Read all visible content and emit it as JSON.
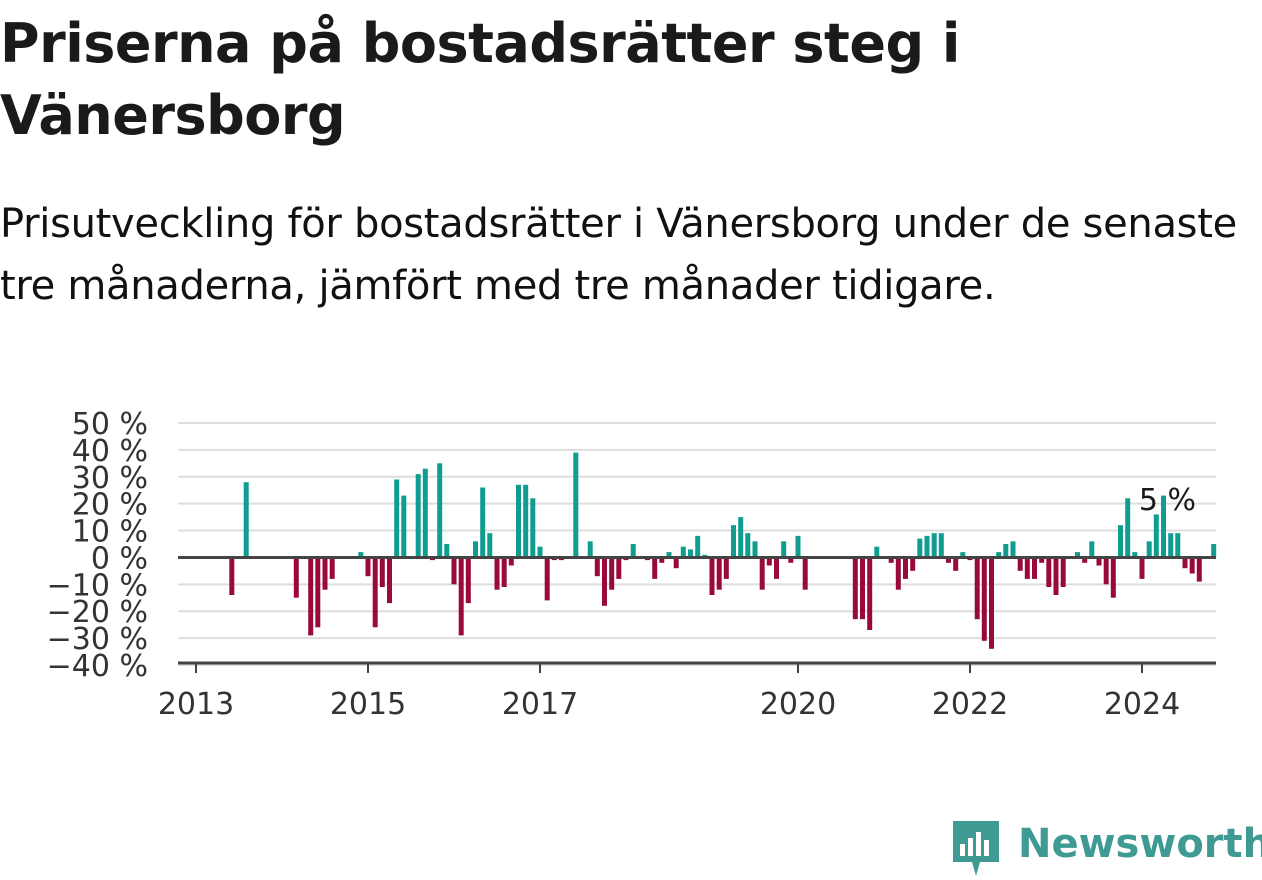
{
  "title": "Priserna på bostadsrätter steg i Vänersborg",
  "subtitle": "Prisutveckling för bostadsrätter i Vänersborg under de senaste tre månaderna, jämfört med tre månader tidigare.",
  "brand": {
    "name": "Newsworthy",
    "icon": "newsworthy-logo-icon"
  },
  "colors": {
    "positive": "#0f9d8f",
    "negative": "#990a3a",
    "grid": "#dddddd",
    "axis": "#444444",
    "brand": "#3e9a93"
  },
  "chart_data": {
    "type": "bar",
    "title": "Priserna på bostadsrätter steg i Vänersborg",
    "xlabel": "",
    "ylabel": "",
    "ylim": [
      -40,
      50
    ],
    "yticks": [
      50,
      40,
      30,
      20,
      10,
      0,
      -10,
      -20,
      -30,
      -40
    ],
    "ytick_labels": [
      "50 %",
      "40 %",
      "30 %",
      "20 %",
      "10 %",
      "0 %",
      "−10 %",
      "−20 %",
      "−30 %",
      "−40 %"
    ],
    "xticks": [
      "2013",
      "2015",
      "2017",
      "2020",
      "2022",
      "2024"
    ],
    "grid": true,
    "end_label": "5 %",
    "series": [
      {
        "values": [
          {
            "x": "2013-06",
            "y": -14
          },
          {
            "x": "2013-08",
            "y": 28
          },
          {
            "x": "2014-03",
            "y": -15
          },
          {
            "x": "2014-05",
            "y": -29
          },
          {
            "x": "2014-06",
            "y": -26
          },
          {
            "x": "2014-07",
            "y": -12
          },
          {
            "x": "2014-08",
            "y": -8
          },
          {
            "x": "2014-12",
            "y": 2
          },
          {
            "x": "2015-01",
            "y": -7
          },
          {
            "x": "2015-02",
            "y": -26
          },
          {
            "x": "2015-03",
            "y": -11
          },
          {
            "x": "2015-04",
            "y": -17
          },
          {
            "x": "2015-05",
            "y": 29
          },
          {
            "x": "2015-06",
            "y": 23
          },
          {
            "x": "2015-08",
            "y": 31
          },
          {
            "x": "2015-09",
            "y": 33
          },
          {
            "x": "2015-10",
            "y": -1
          },
          {
            "x": "2015-11",
            "y": 35
          },
          {
            "x": "2015-12",
            "y": 5
          },
          {
            "x": "2016-01",
            "y": -10
          },
          {
            "x": "2016-02",
            "y": -29
          },
          {
            "x": "2016-03",
            "y": -17
          },
          {
            "x": "2016-04",
            "y": 6
          },
          {
            "x": "2016-05",
            "y": 26
          },
          {
            "x": "2016-06",
            "y": 9
          },
          {
            "x": "2016-07",
            "y": -12
          },
          {
            "x": "2016-08",
            "y": -11
          },
          {
            "x": "2016-09",
            "y": -3
          },
          {
            "x": "2016-10",
            "y": 27
          },
          {
            "x": "2016-11",
            "y": 27
          },
          {
            "x": "2016-12",
            "y": 22
          },
          {
            "x": "2017-01",
            "y": 4
          },
          {
            "x": "2017-02",
            "y": -16
          },
          {
            "x": "2017-03",
            "y": -1
          },
          {
            "x": "2017-04",
            "y": -1
          },
          {
            "x": "2017-06",
            "y": 39
          },
          {
            "x": "2017-08",
            "y": 6
          },
          {
            "x": "2017-09",
            "y": -7
          },
          {
            "x": "2017-10",
            "y": -18
          },
          {
            "x": "2017-11",
            "y": -12
          },
          {
            "x": "2017-12",
            "y": -8
          },
          {
            "x": "2018-01",
            "y": -1
          },
          {
            "x": "2018-02",
            "y": 5
          },
          {
            "x": "2018-04",
            "y": -1
          },
          {
            "x": "2018-05",
            "y": -8
          },
          {
            "x": "2018-06",
            "y": -2
          },
          {
            "x": "2018-07",
            "y": 2
          },
          {
            "x": "2018-08",
            "y": -4
          },
          {
            "x": "2018-09",
            "y": 4
          },
          {
            "x": "2018-10",
            "y": 3
          },
          {
            "x": "2018-11",
            "y": 8
          },
          {
            "x": "2018-12",
            "y": 1
          },
          {
            "x": "2019-01",
            "y": -14
          },
          {
            "x": "2019-02",
            "y": -12
          },
          {
            "x": "2019-03",
            "y": -8
          },
          {
            "x": "2019-04",
            "y": 12
          },
          {
            "x": "2019-05",
            "y": 15
          },
          {
            "x": "2019-06",
            "y": 9
          },
          {
            "x": "2019-07",
            "y": 6
          },
          {
            "x": "2019-08",
            "y": -12
          },
          {
            "x": "2019-09",
            "y": -3
          },
          {
            "x": "2019-10",
            "y": -8
          },
          {
            "x": "2019-11",
            "y": 6
          },
          {
            "x": "2019-12",
            "y": -2
          },
          {
            "x": "2020-01",
            "y": 8
          },
          {
            "x": "2020-02",
            "y": -12
          },
          {
            "x": "2020-09",
            "y": -23
          },
          {
            "x": "2020-10",
            "y": -23
          },
          {
            "x": "2020-11",
            "y": -27
          },
          {
            "x": "2020-12",
            "y": 4
          },
          {
            "x": "2021-02",
            "y": -2
          },
          {
            "x": "2021-03",
            "y": -12
          },
          {
            "x": "2021-04",
            "y": -8
          },
          {
            "x": "2021-05",
            "y": -5
          },
          {
            "x": "2021-06",
            "y": 7
          },
          {
            "x": "2021-07",
            "y": 8
          },
          {
            "x": "2021-08",
            "y": 9
          },
          {
            "x": "2021-09",
            "y": 9
          },
          {
            "x": "2021-10",
            "y": -2
          },
          {
            "x": "2021-11",
            "y": -5
          },
          {
            "x": "2021-12",
            "y": 2
          },
          {
            "x": "2022-01",
            "y": -1
          },
          {
            "x": "2022-02",
            "y": -23
          },
          {
            "x": "2022-03",
            "y": -31
          },
          {
            "x": "2022-04",
            "y": -34
          },
          {
            "x": "2022-05",
            "y": 2
          },
          {
            "x": "2022-06",
            "y": 5
          },
          {
            "x": "2022-07",
            "y": 6
          },
          {
            "x": "2022-08",
            "y": -5
          },
          {
            "x": "2022-09",
            "y": -8
          },
          {
            "x": "2022-10",
            "y": -8
          },
          {
            "x": "2022-11",
            "y": -2
          },
          {
            "x": "2022-12",
            "y": -11
          },
          {
            "x": "2023-01",
            "y": -14
          },
          {
            "x": "2023-02",
            "y": -11
          },
          {
            "x": "2023-04",
            "y": 2
          },
          {
            "x": "2023-05",
            "y": -2
          },
          {
            "x": "2023-06",
            "y": 6
          },
          {
            "x": "2023-07",
            "y": -3
          },
          {
            "x": "2023-08",
            "y": -10
          },
          {
            "x": "2023-09",
            "y": -15
          },
          {
            "x": "2023-10",
            "y": 12
          },
          {
            "x": "2023-11",
            "y": 22
          },
          {
            "x": "2023-12",
            "y": 2
          },
          {
            "x": "2024-01",
            "y": -8
          },
          {
            "x": "2024-02",
            "y": 6
          },
          {
            "x": "2024-03",
            "y": 16
          },
          {
            "x": "2024-04",
            "y": 23
          },
          {
            "x": "2024-05",
            "y": 9
          },
          {
            "x": "2024-06",
            "y": 9
          },
          {
            "x": "2024-07",
            "y": -4
          },
          {
            "x": "2024-08",
            "y": -6
          },
          {
            "x": "2024-09",
            "y": -9
          },
          {
            "x": "2024-11",
            "y": 5
          }
        ]
      }
    ]
  }
}
